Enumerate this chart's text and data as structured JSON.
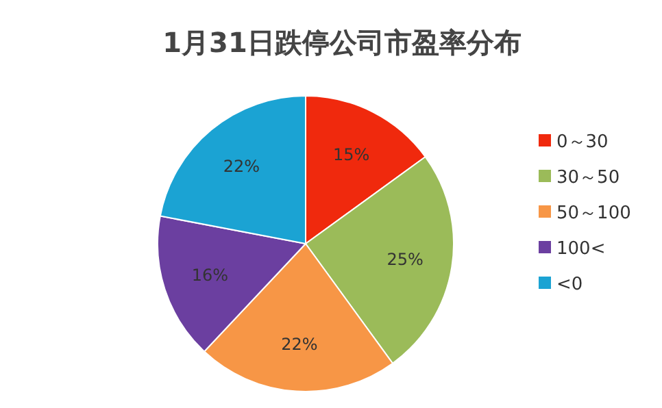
{
  "chart_data": {
    "type": "pie",
    "title": "1月31日跌停公司市盈率分布",
    "categories": [
      "0～30",
      "30～50",
      "50～100",
      "100<",
      "<0"
    ],
    "values": [
      15,
      25,
      22,
      16,
      22
    ],
    "value_labels": [
      "15%",
      "25%",
      "22%",
      "16%",
      "22%"
    ],
    "colors": [
      "#f0290d",
      "#9bbb59",
      "#f79646",
      "#6b3fa0",
      "#1ba3d3"
    ],
    "legend": "right"
  }
}
